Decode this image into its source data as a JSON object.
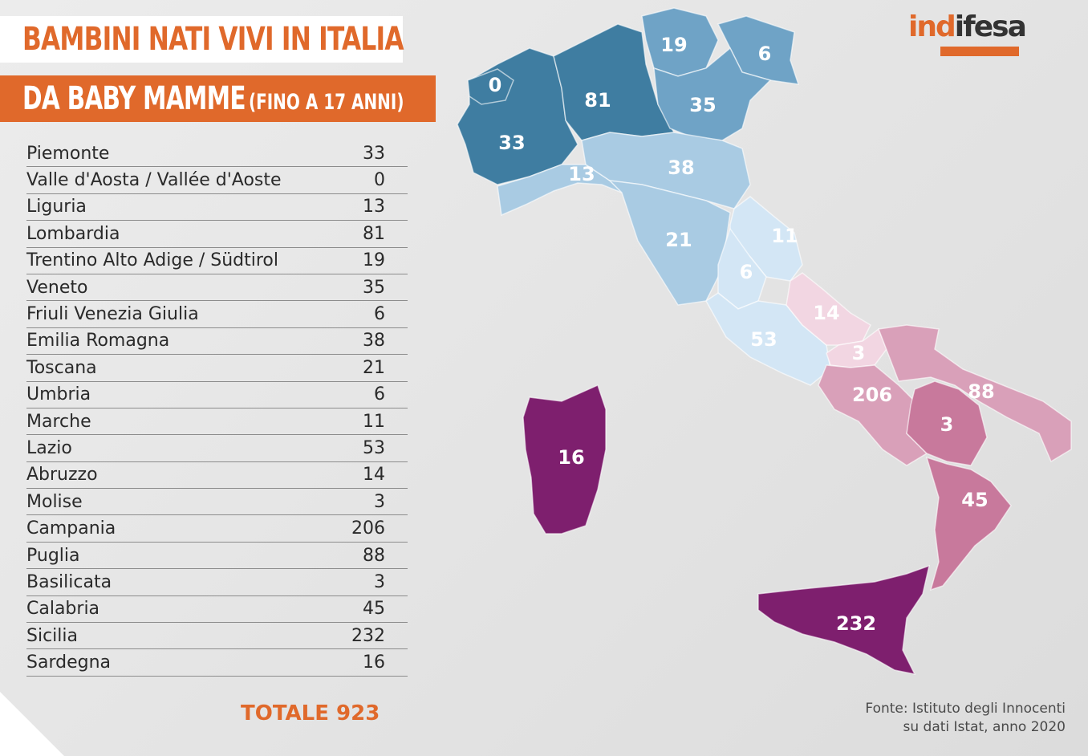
{
  "title_line1": "BAMBINI NATI VIVI IN ITALIA",
  "title_line2_main": "DA BABY MAMME",
  "title_line2_sub": "(FINO A 17 ANNI)",
  "logo_text_orange": "ind",
  "logo_text_dark": "ifesa",
  "table": [
    {
      "region": "Piemonte",
      "value": "33"
    },
    {
      "region": "Valle d'Aosta / Vallée d'Aoste",
      "value": "0"
    },
    {
      "region": "Liguria",
      "value": "13"
    },
    {
      "region": "Lombardia",
      "value": "81"
    },
    {
      "region": "Trentino Alto Adige / Südtirol",
      "value": "19"
    },
    {
      "region": "Veneto",
      "value": "35"
    },
    {
      "region": "Friuli Venezia Giulia",
      "value": "6"
    },
    {
      "region": "Emilia Romagna",
      "value": "38"
    },
    {
      "region": "Toscana",
      "value": "21"
    },
    {
      "region": "Umbria",
      "value": "6"
    },
    {
      "region": "Marche",
      "value": "11"
    },
    {
      "region": "Lazio",
      "value": "53"
    },
    {
      "region": "Abruzzo",
      "value": "14"
    },
    {
      "region": "Molise",
      "value": "3"
    },
    {
      "region": "Campania",
      "value": "206"
    },
    {
      "region": "Puglia",
      "value": "88"
    },
    {
      "region": "Basilicata",
      "value": "3"
    },
    {
      "region": "Calabria",
      "value": "45"
    },
    {
      "region": "Sicilia",
      "value": "232"
    },
    {
      "region": "Sardegna",
      "value": "16"
    }
  ],
  "total_label": "TOTALE 923",
  "source_line1": "Fonte: Istituto degli Innocenti",
  "source_line2": "su dati Istat, anno 2020",
  "map_labels": {
    "piemonte": "33",
    "valle_aosta": "0",
    "liguria": "13",
    "lombardia": "81",
    "trentino": "19",
    "veneto": "35",
    "friuli": "6",
    "emilia": "38",
    "toscana": "21",
    "umbria": "6",
    "marche": "11",
    "lazio": "53",
    "abruzzo": "14",
    "molise": "3",
    "campania": "206",
    "puglia": "88",
    "basilicata": "3",
    "calabria": "45",
    "sicilia": "232",
    "sardegna": "16"
  },
  "colors": {
    "accent": "#e0692b",
    "dark_blue": "#3f7da1",
    "mid_blue": "#6fa3c6",
    "light_blue": "#a9cbe3",
    "pale_blue": "#d3e6f5",
    "pale_pink": "#f2d6e2",
    "mid_pink": "#d9a0b9",
    "deep_pink": "#c8799c",
    "purple": "#7e1f6e"
  }
}
